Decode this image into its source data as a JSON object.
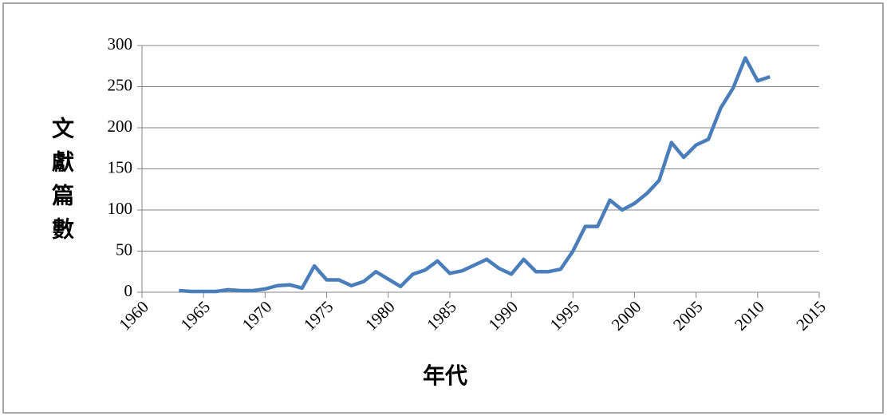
{
  "chart_data": {
    "type": "line",
    "xlabel": "年代",
    "ylabel": "文獻篇數",
    "x": [
      1963,
      1964,
      1965,
      1966,
      1967,
      1968,
      1969,
      1970,
      1971,
      1972,
      1973,
      1974,
      1975,
      1976,
      1977,
      1978,
      1979,
      1980,
      1981,
      1982,
      1983,
      1984,
      1985,
      1986,
      1987,
      1988,
      1989,
      1990,
      1991,
      1992,
      1993,
      1994,
      1995,
      1996,
      1997,
      1998,
      1999,
      2000,
      2001,
      2002,
      2003,
      2004,
      2005,
      2006,
      2007,
      2008,
      2009,
      2010,
      2011
    ],
    "series": [
      {
        "name": "文獻篇數",
        "color": "#4a7ebb",
        "values": [
          2,
          1,
          1,
          1,
          3,
          2,
          2,
          4,
          8,
          9,
          5,
          32,
          15,
          15,
          8,
          13,
          25,
          16,
          7,
          22,
          27,
          38,
          23,
          26,
          33,
          40,
          29,
          22,
          40,
          25,
          25,
          28,
          50,
          80,
          80,
          112,
          100,
          108,
          120,
          136,
          182,
          164,
          179,
          186,
          224,
          248,
          285,
          257,
          262
        ]
      }
    ],
    "xlim": [
      1960,
      2015
    ],
    "xticks": [
      1960,
      1965,
      1970,
      1975,
      1980,
      1985,
      1990,
      1995,
      2000,
      2005,
      2010,
      2015
    ],
    "ylim": [
      0,
      300
    ],
    "yticks": [
      0,
      50,
      100,
      150,
      200,
      250,
      300
    ],
    "grid": true
  }
}
